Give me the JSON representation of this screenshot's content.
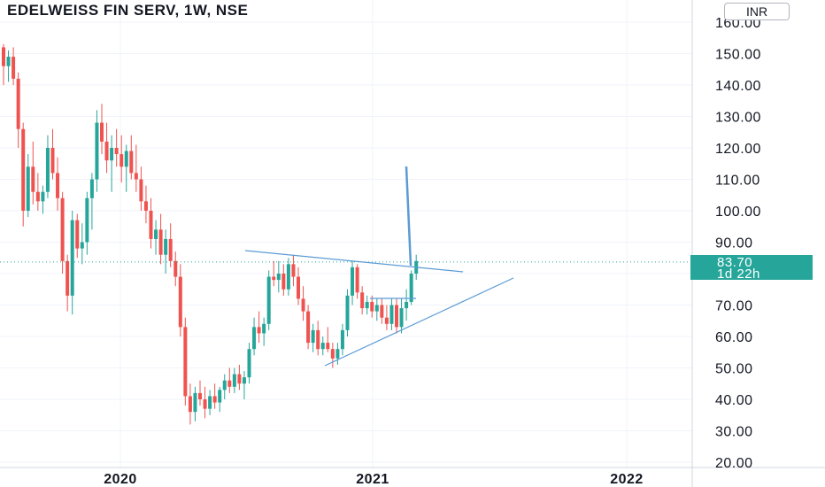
{
  "header": {
    "symbol_title": "EDELWEISS FIN SERV, 1W, NSE",
    "currency": "INR"
  },
  "price_tag": {
    "price": "83.70",
    "countdown": "1d 22h"
  },
  "colors": {
    "up": "#26a69a",
    "down": "#ef5350",
    "drawing": "#5b9bd5",
    "tag": "#26a69a"
  },
  "chart_data": {
    "type": "candlestick",
    "title": "EDELWEISS FIN SERV, 1W, NSE",
    "y_axis": {
      "ticks": [
        "160.00",
        "150.00",
        "140.00",
        "130.00",
        "120.00",
        "110.00",
        "100.00",
        "90.00",
        "70.00",
        "60.00",
        "50.00",
        "40.00",
        "30.00",
        "20.00"
      ],
      "range": [
        17.5,
        167
      ]
    },
    "x_axis": {
      "ticks": [
        "2020",
        "2021",
        "2022"
      ]
    },
    "last_price": 83.7,
    "grid": true,
    "candles": [
      [
        152,
        153,
        140,
        146
      ],
      [
        146,
        151,
        141,
        149
      ],
      [
        149,
        152,
        140,
        142
      ],
      [
        142,
        144,
        120,
        126
      ],
      [
        126,
        128,
        95,
        100
      ],
      [
        100,
        118,
        98,
        114
      ],
      [
        114,
        122,
        102,
        106
      ],
      [
        106,
        112,
        100,
        103
      ],
      [
        103,
        108,
        99,
        106
      ],
      [
        106,
        124,
        104,
        120
      ],
      [
        120,
        126,
        110,
        112
      ],
      [
        112,
        117,
        100,
        104
      ],
      [
        104,
        106,
        80,
        84
      ],
      [
        84,
        86,
        68,
        73
      ],
      [
        73,
        100,
        67,
        97
      ],
      [
        97,
        99,
        85,
        88
      ],
      [
        88,
        96,
        83,
        90
      ],
      [
        90,
        106,
        86,
        104
      ],
      [
        104,
        112,
        94,
        110
      ],
      [
        110,
        132,
        106,
        128
      ],
      [
        128,
        134,
        118,
        122
      ],
      [
        122,
        128,
        112,
        116
      ],
      [
        116,
        124,
        106,
        120
      ],
      [
        120,
        126,
        114,
        118
      ],
      [
        118,
        124,
        109,
        114
      ],
      [
        114,
        121,
        106,
        119
      ],
      [
        119,
        124,
        110,
        112
      ],
      [
        112,
        121,
        106,
        110
      ],
      [
        110,
        114,
        100,
        103
      ],
      [
        103,
        108,
        96,
        100
      ],
      [
        100,
        104,
        88,
        91
      ],
      [
        91,
        97,
        86,
        94
      ],
      [
        94,
        99,
        83,
        86
      ],
      [
        86,
        94,
        80,
        91
      ],
      [
        91,
        96,
        82,
        84
      ],
      [
        84,
        87,
        76,
        79
      ],
      [
        79,
        83,
        60,
        63
      ],
      [
        63,
        66,
        38,
        41
      ],
      [
        41,
        45,
        32,
        36
      ],
      [
        36,
        44,
        33,
        42
      ],
      [
        42,
        46,
        38,
        40
      ],
      [
        40,
        44,
        34,
        37
      ],
      [
        37,
        43,
        35,
        41
      ],
      [
        41,
        45,
        37,
        39
      ],
      [
        39,
        44,
        36,
        43
      ],
      [
        43,
        48,
        40,
        46
      ],
      [
        46,
        50,
        42,
        44
      ],
      [
        44,
        50,
        42,
        48
      ],
      [
        48,
        51,
        43,
        45
      ],
      [
        45,
        49,
        40,
        47
      ],
      [
        47,
        58,
        45,
        56
      ],
      [
        56,
        66,
        54,
        63
      ],
      [
        63,
        68,
        58,
        61
      ],
      [
        61,
        66,
        57,
        64
      ],
      [
        64,
        81,
        62,
        79
      ],
      [
        79,
        84,
        76,
        78
      ],
      [
        78,
        84,
        74,
        80
      ],
      [
        80,
        83,
        73,
        75
      ],
      [
        75,
        85,
        73,
        83
      ],
      [
        83,
        86,
        76,
        79
      ],
      [
        79,
        82,
        70,
        72
      ],
      [
        72,
        76,
        65,
        68
      ],
      [
        68,
        70,
        56,
        58
      ],
      [
        58,
        64,
        55,
        62
      ],
      [
        62,
        65,
        54,
        56
      ],
      [
        56,
        60,
        54,
        58
      ],
      [
        58,
        63,
        55,
        56
      ],
      [
        56,
        58,
        50,
        53
      ],
      [
        53,
        58,
        51,
        56
      ],
      [
        56,
        64,
        54,
        62
      ],
      [
        62,
        75,
        60,
        73
      ],
      [
        73,
        84,
        70,
        82
      ],
      [
        82,
        83,
        72,
        74
      ],
      [
        74,
        76,
        67,
        69
      ],
      [
        69,
        73,
        67,
        71
      ],
      [
        71,
        73,
        66,
        68
      ],
      [
        68,
        72,
        65,
        70
      ],
      [
        70,
        72,
        64,
        66
      ],
      [
        66,
        70,
        62,
        64
      ],
      [
        64,
        72,
        62,
        70
      ],
      [
        70,
        72,
        61,
        63
      ],
      [
        63,
        72,
        61,
        69
      ],
      [
        69,
        75,
        65,
        71
      ],
      [
        71,
        81,
        70,
        80
      ],
      [
        80,
        86,
        78,
        84
      ]
    ],
    "drawings": [
      {
        "from": [
          277,
          283
        ],
        "to": [
          523,
          307
        ]
      },
      {
        "from": [
          367,
          413
        ],
        "to": [
          580,
          314
        ]
      },
      {
        "from": [
          459,
          188
        ],
        "to": [
          464,
          300
        ]
      },
      {
        "from": [
          418,
          337
        ],
        "to": [
          470,
          337
        ]
      }
    ]
  }
}
